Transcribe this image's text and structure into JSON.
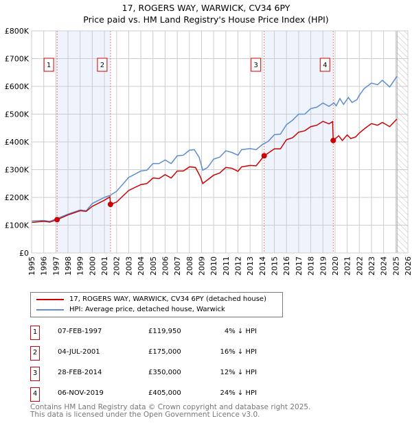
{
  "title": "17, ROGERS WAY, WARWICK, CV34 6PY",
  "subtitle": "Price paid vs. HM Land Registry's House Price Index (HPI)",
  "chart_data": {
    "type": "line",
    "xlim": [
      1995,
      2026
    ],
    "ylim": [
      0,
      800000
    ],
    "x_ticks": [
      "1995",
      "1996",
      "1997",
      "1998",
      "1999",
      "2000",
      "2001",
      "2002",
      "2003",
      "2004",
      "2005",
      "2006",
      "2007",
      "2008",
      "2009",
      "2010",
      "2011",
      "2012",
      "2013",
      "2014",
      "2015",
      "2016",
      "2017",
      "2018",
      "2019",
      "2020",
      "2021",
      "2022",
      "2023",
      "2024",
      "2025",
      "2026"
    ],
    "y_ticks": [
      {
        "v": 0,
        "l": "£0"
      },
      {
        "v": 100000,
        "l": "£100K"
      },
      {
        "v": 200000,
        "l": "£200K"
      },
      {
        "v": 300000,
        "l": "£300K"
      },
      {
        "v": 400000,
        "l": "£400K"
      },
      {
        "v": 500000,
        "l": "£500K"
      },
      {
        "v": 600000,
        "l": "£600K"
      },
      {
        "v": 700000,
        "l": "£700K"
      },
      {
        "v": 800000,
        "l": "£800K"
      }
    ],
    "series": [
      {
        "name": "HPI: Average price, detached house, Warwick",
        "color": "#5b8dd0",
        "points": [
          [
            1995,
            115
          ],
          [
            1996,
            117
          ],
          [
            1996.5,
            114
          ],
          [
            1997,
            122
          ],
          [
            1998,
            140
          ],
          [
            1999,
            155
          ],
          [
            1999.5,
            152
          ],
          [
            2000,
            178
          ],
          [
            2001,
            200
          ],
          [
            2001.5,
            208
          ],
          [
            2002,
            222
          ],
          [
            2003,
            272
          ],
          [
            2004,
            295
          ],
          [
            2004.5,
            298
          ],
          [
            2005,
            322
          ],
          [
            2005.5,
            322
          ],
          [
            2006,
            335
          ],
          [
            2006.5,
            322
          ],
          [
            2007,
            350
          ],
          [
            2007.5,
            352
          ],
          [
            2008,
            370
          ],
          [
            2008.4,
            372
          ],
          [
            2008.8,
            345
          ],
          [
            2009.1,
            298
          ],
          [
            2009.5,
            308
          ],
          [
            2010,
            338
          ],
          [
            2010.5,
            345
          ],
          [
            2011,
            368
          ],
          [
            2011.5,
            362
          ],
          [
            2012,
            352
          ],
          [
            2012.3,
            372
          ],
          [
            2013,
            376
          ],
          [
            2013.5,
            372
          ],
          [
            2014,
            390
          ],
          [
            2014.5,
            402
          ],
          [
            2015,
            426
          ],
          [
            2015.5,
            428
          ],
          [
            2016,
            462
          ],
          [
            2016.5,
            478
          ],
          [
            2017,
            500
          ],
          [
            2017.5,
            500
          ],
          [
            2018,
            520
          ],
          [
            2018.5,
            525
          ],
          [
            2019,
            540
          ],
          [
            2019.5,
            528
          ],
          [
            2019.9,
            540
          ],
          [
            2020.1,
            530
          ],
          [
            2020.4,
            556
          ],
          [
            2020.7,
            535
          ],
          [
            2021.1,
            560
          ],
          [
            2021.4,
            542
          ],
          [
            2021.8,
            552
          ],
          [
            2022,
            568
          ],
          [
            2022.4,
            592
          ],
          [
            2023,
            612
          ],
          [
            2023.5,
            606
          ],
          [
            2023.9,
            622
          ],
          [
            2024.5,
            598
          ],
          [
            2025,
            630
          ],
          [
            2025.1,
            636
          ]
        ]
      },
      {
        "name": "17, ROGERS WAY, WARWICK, CV34 6PY (detached house)",
        "color": "#cc0000",
        "points": [
          [
            1995,
            110
          ],
          [
            1996,
            114
          ],
          [
            1996.5,
            111
          ],
          [
            1997.1,
            119.95
          ],
          [
            1998,
            137
          ],
          [
            1999,
            152
          ],
          [
            1999.5,
            150
          ],
          [
            2000,
            168
          ],
          [
            2001,
            190
          ],
          [
            2001.45,
            202
          ],
          [
            2001.5,
            175
          ],
          [
            2002,
            183
          ],
          [
            2003,
            225
          ],
          [
            2004,
            246
          ],
          [
            2004.5,
            250
          ],
          [
            2005,
            270
          ],
          [
            2005.5,
            268
          ],
          [
            2006,
            282
          ],
          [
            2006.5,
            270
          ],
          [
            2007,
            295
          ],
          [
            2007.5,
            295
          ],
          [
            2008,
            310
          ],
          [
            2008.5,
            308
          ],
          [
            2008.9,
            275
          ],
          [
            2009.1,
            250
          ],
          [
            2010,
            280
          ],
          [
            2010.5,
            288
          ],
          [
            2011,
            308
          ],
          [
            2011.5,
            305
          ],
          [
            2012,
            294
          ],
          [
            2012.3,
            310
          ],
          [
            2013,
            315
          ],
          [
            2013.5,
            314
          ],
          [
            2014.16,
            350
          ],
          [
            2014.5,
            360
          ],
          [
            2015,
            375
          ],
          [
            2015.5,
            375
          ],
          [
            2016,
            408
          ],
          [
            2016.5,
            415
          ],
          [
            2017,
            435
          ],
          [
            2017.5,
            440
          ],
          [
            2018,
            455
          ],
          [
            2018.5,
            460
          ],
          [
            2019,
            474
          ],
          [
            2019.5,
            465
          ],
          [
            2019.8,
            473
          ],
          [
            2019.85,
            405
          ],
          [
            2020.3,
            422
          ],
          [
            2020.6,
            405
          ],
          [
            2021,
            425
          ],
          [
            2021.3,
            412
          ],
          [
            2021.7,
            418
          ],
          [
            2022,
            432
          ],
          [
            2022.5,
            450
          ],
          [
            2023,
            466
          ],
          [
            2023.5,
            460
          ],
          [
            2023.9,
            470
          ],
          [
            2024.5,
            455
          ],
          [
            2025,
            478
          ],
          [
            2025.1,
            482
          ]
        ]
      }
    ],
    "sales": [
      {
        "n": "1",
        "x": 1997.1,
        "y": 119950
      },
      {
        "n": "2",
        "x": 2001.5,
        "y": 175000
      },
      {
        "n": "3",
        "x": 2014.16,
        "y": 350000
      },
      {
        "n": "4",
        "x": 2019.85,
        "y": 405000
      }
    ],
    "shaded": [
      [
        1997.1,
        2001.5
      ],
      [
        2014.16,
        2019.85
      ]
    ],
    "forecast_from": 2025.1
  },
  "legend": {
    "property": "17, ROGERS WAY, WARWICK, CV34 6PY (detached house)",
    "hpi": "HPI: Average price, detached house, Warwick"
  },
  "table": [
    {
      "n": "1",
      "date": "07-FEB-1997",
      "price": "£119,950",
      "hpi": "4% ↓ HPI"
    },
    {
      "n": "2",
      "date": "04-JUL-2001",
      "price": "£175,000",
      "hpi": "16% ↓ HPI"
    },
    {
      "n": "3",
      "date": "28-FEB-2014",
      "price": "£350,000",
      "hpi": "12% ↓ HPI"
    },
    {
      "n": "4",
      "date": "06-NOV-2019",
      "price": "£405,000",
      "hpi": "24% ↓ HPI"
    }
  ],
  "footer": [
    "Contains HM Land Registry data © Crown copyright and database right 2025.",
    "This data is licensed under the Open Government Licence v3.0."
  ]
}
